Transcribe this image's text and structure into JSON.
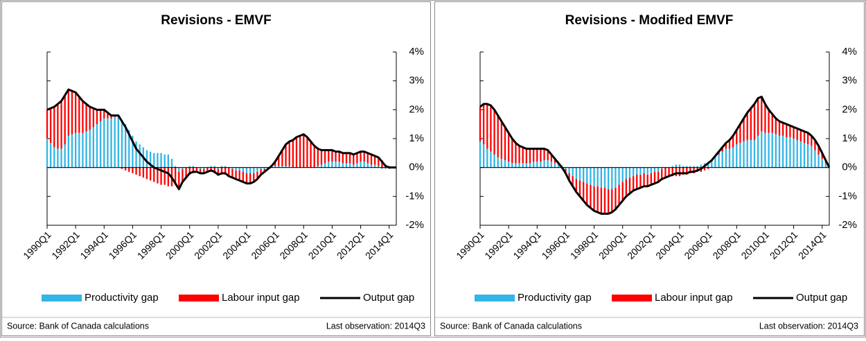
{
  "chart_data": [
    {
      "type": "bar",
      "stacked": true,
      "title": "Revisions - EMVF",
      "categories": [
        "1990Q1",
        null,
        null,
        null,
        null,
        null,
        null,
        null,
        "1992Q1",
        null,
        null,
        null,
        null,
        null,
        null,
        null,
        "1994Q1",
        null,
        null,
        null,
        null,
        null,
        null,
        null,
        "1996Q1",
        null,
        null,
        null,
        null,
        null,
        null,
        null,
        "1998Q1",
        null,
        null,
        null,
        null,
        null,
        null,
        null,
        "2000Q1",
        null,
        null,
        null,
        null,
        null,
        null,
        null,
        "2002Q1",
        null,
        null,
        null,
        null,
        null,
        null,
        null,
        "2004Q1",
        null,
        null,
        null,
        null,
        null,
        null,
        null,
        "2006Q1",
        null,
        null,
        null,
        null,
        null,
        null,
        null,
        "2008Q1",
        null,
        null,
        null,
        null,
        null,
        null,
        null,
        "2010Q1",
        null,
        null,
        null,
        null,
        null,
        null,
        null,
        "2012Q1",
        null,
        null,
        null,
        null,
        null,
        null,
        null,
        "2014Q1",
        null,
        null
      ],
      "series": [
        {
          "name": "Productivity gap",
          "type": "bar",
          "color": "#33b5e5",
          "values": [
            1.0,
            0.85,
            0.7,
            0.65,
            0.65,
            0.8,
            1.1,
            1.15,
            1.2,
            1.2,
            1.2,
            1.25,
            1.3,
            1.4,
            1.5,
            1.6,
            1.7,
            1.7,
            1.7,
            1.75,
            1.8,
            1.65,
            1.5,
            1.3,
            1.1,
            0.9,
            0.8,
            0.7,
            0.6,
            0.55,
            0.5,
            0.5,
            0.5,
            0.45,
            0.45,
            0.3,
            0.05,
            -0.15,
            -0.05,
            0.0,
            0.05,
            0.05,
            0.0,
            -0.05,
            -0.05,
            0.0,
            0.05,
            0.05,
            -0.05,
            0.05,
            0.05,
            0.0,
            -0.05,
            -0.1,
            -0.1,
            -0.15,
            -0.2,
            -0.2,
            -0.2,
            -0.15,
            -0.05,
            -0.05,
            0.0,
            0.0,
            0.05,
            0.05,
            0.05,
            0.05,
            0.05,
            0.0,
            0.0,
            0.0,
            0.0,
            0.0,
            0.0,
            0.0,
            0.05,
            0.1,
            0.15,
            0.2,
            0.2,
            0.2,
            0.2,
            0.15,
            0.15,
            0.15,
            0.1,
            0.15,
            0.2,
            0.2,
            0.15,
            0.1,
            0.1,
            0.05,
            -0.05,
            -0.05,
            -0.05,
            0.0,
            0.0
          ]
        },
        {
          "name": "Labour input gap",
          "type": "bar",
          "color": "#ff0000",
          "values": [
            1.0,
            1.2,
            1.4,
            1.55,
            1.65,
            1.7,
            1.6,
            1.5,
            1.4,
            1.25,
            1.1,
            0.95,
            0.8,
            0.65,
            0.5,
            0.4,
            0.3,
            0.2,
            0.1,
            0.05,
            0.0,
            -0.05,
            -0.1,
            -0.15,
            -0.2,
            -0.25,
            -0.3,
            -0.35,
            -0.4,
            -0.45,
            -0.5,
            -0.55,
            -0.6,
            -0.6,
            -0.65,
            -0.65,
            -0.6,
            -0.6,
            -0.45,
            -0.35,
            -0.25,
            -0.2,
            -0.15,
            -0.15,
            -0.15,
            -0.15,
            -0.15,
            -0.2,
            -0.2,
            -0.25,
            -0.25,
            -0.3,
            -0.3,
            -0.3,
            -0.35,
            -0.35,
            -0.35,
            -0.35,
            -0.3,
            -0.25,
            -0.2,
            -0.1,
            -0.05,
            0.05,
            0.15,
            0.35,
            0.55,
            0.75,
            0.85,
            0.95,
            1.05,
            1.1,
            1.15,
            1.05,
            0.9,
            0.75,
            0.6,
            0.5,
            0.45,
            0.4,
            0.4,
            0.35,
            0.35,
            0.35,
            0.35,
            0.35,
            0.35,
            0.35,
            0.35,
            0.35,
            0.35,
            0.35,
            0.3,
            0.3,
            0.25,
            0.1,
            0.05,
            0.0,
            0.0
          ]
        },
        {
          "name": "Output gap",
          "type": "line",
          "color": "#000000",
          "values": [
            2.0,
            2.05,
            2.1,
            2.2,
            2.3,
            2.5,
            2.7,
            2.65,
            2.6,
            2.45,
            2.3,
            2.2,
            2.1,
            2.05,
            2.0,
            2.0,
            2.0,
            1.9,
            1.8,
            1.8,
            1.8,
            1.6,
            1.4,
            1.15,
            0.9,
            0.65,
            0.5,
            0.35,
            0.2,
            0.1,
            0.0,
            -0.05,
            -0.1,
            -0.15,
            -0.2,
            -0.35,
            -0.55,
            -0.75,
            -0.5,
            -0.35,
            -0.2,
            -0.15,
            -0.15,
            -0.2,
            -0.2,
            -0.15,
            -0.1,
            -0.15,
            -0.25,
            -0.2,
            -0.2,
            -0.3,
            -0.35,
            -0.4,
            -0.45,
            -0.5,
            -0.55,
            -0.55,
            -0.5,
            -0.4,
            -0.25,
            -0.15,
            -0.05,
            0.05,
            0.2,
            0.4,
            0.6,
            0.8,
            0.9,
            0.95,
            1.05,
            1.1,
            1.15,
            1.05,
            0.9,
            0.75,
            0.65,
            0.6,
            0.6,
            0.6,
            0.6,
            0.55,
            0.55,
            0.5,
            0.5,
            0.5,
            0.45,
            0.5,
            0.55,
            0.55,
            0.5,
            0.45,
            0.4,
            0.35,
            0.2,
            0.05,
            0.0,
            0.0,
            0.0
          ]
        }
      ],
      "ylim": [
        -2,
        4
      ],
      "yticks": [
        {
          "value": -2,
          "label": "-2%"
        },
        {
          "value": -1,
          "label": "-1%"
        },
        {
          "value": 0,
          "label": "0%"
        },
        {
          "value": 1,
          "label": "1%"
        },
        {
          "value": 2,
          "label": "2%"
        },
        {
          "value": 3,
          "label": "3%"
        },
        {
          "value": 4,
          "label": "4%"
        }
      ],
      "legend": "bottom",
      "source": "Source: Bank of Canada calculations",
      "note": "Last observation: 2014Q3"
    },
    {
      "type": "bar",
      "stacked": true,
      "title": "Revisions - Modified EMVF",
      "categories": [
        "1990Q1",
        null,
        null,
        null,
        null,
        null,
        null,
        null,
        "1992Q1",
        null,
        null,
        null,
        null,
        null,
        null,
        null,
        "1994Q1",
        null,
        null,
        null,
        null,
        null,
        null,
        null,
        "1996Q1",
        null,
        null,
        null,
        null,
        null,
        null,
        null,
        "1998Q1",
        null,
        null,
        null,
        null,
        null,
        null,
        null,
        "2000Q1",
        null,
        null,
        null,
        null,
        null,
        null,
        null,
        "2002Q1",
        null,
        null,
        null,
        null,
        null,
        null,
        null,
        "2004Q1",
        null,
        null,
        null,
        null,
        null,
        null,
        null,
        "2006Q1",
        null,
        null,
        null,
        null,
        null,
        null,
        null,
        "2008Q1",
        null,
        null,
        null,
        null,
        null,
        null,
        null,
        "2010Q1",
        null,
        null,
        null,
        null,
        null,
        null,
        null,
        "2012Q1",
        null,
        null,
        null,
        null,
        null,
        null,
        null,
        "2014Q1",
        null,
        null
      ],
      "series": [
        {
          "name": "Productivity gap",
          "type": "bar",
          "color": "#33b5e5",
          "values": [
            0.9,
            0.8,
            0.65,
            0.55,
            0.45,
            0.35,
            0.3,
            0.25,
            0.2,
            0.15,
            0.15,
            0.15,
            0.15,
            0.15,
            0.15,
            0.2,
            0.2,
            0.2,
            0.25,
            0.25,
            0.2,
            0.15,
            0.1,
            0.05,
            -0.05,
            -0.2,
            -0.3,
            -0.4,
            -0.45,
            -0.5,
            -0.55,
            -0.6,
            -0.65,
            -0.65,
            -0.7,
            -0.7,
            -0.75,
            -0.75,
            -0.7,
            -0.6,
            -0.5,
            -0.4,
            -0.35,
            -0.3,
            -0.25,
            -0.25,
            -0.2,
            -0.25,
            -0.2,
            -0.15,
            -0.15,
            -0.05,
            0.0,
            0.0,
            0.05,
            0.1,
            0.1,
            0.05,
            0.05,
            0.05,
            0.05,
            0.05,
            0.1,
            0.15,
            0.2,
            0.25,
            0.35,
            0.45,
            0.55,
            0.65,
            0.65,
            0.7,
            0.8,
            0.85,
            0.9,
            0.95,
            0.95,
            0.95,
            1.1,
            1.25,
            1.2,
            1.2,
            1.2,
            1.15,
            1.1,
            1.1,
            1.05,
            1.05,
            1.0,
            0.95,
            0.9,
            0.85,
            0.8,
            0.75,
            0.6,
            0.45,
            0.3,
            0.15,
            0.0
          ]
        },
        {
          "name": "Labour input gap",
          "type": "bar",
          "color": "#ff0000",
          "values": [
            1.2,
            1.4,
            1.55,
            1.6,
            1.55,
            1.45,
            1.3,
            1.15,
            1.0,
            0.85,
            0.7,
            0.6,
            0.55,
            0.5,
            0.5,
            0.45,
            0.45,
            0.45,
            0.4,
            0.35,
            0.25,
            0.15,
            0.05,
            -0.05,
            -0.15,
            -0.25,
            -0.35,
            -0.45,
            -0.55,
            -0.65,
            -0.75,
            -0.8,
            -0.85,
            -0.9,
            -0.9,
            -0.9,
            -0.85,
            -0.8,
            -0.75,
            -0.7,
            -0.65,
            -0.6,
            -0.55,
            -0.5,
            -0.5,
            -0.45,
            -0.45,
            -0.4,
            -0.4,
            -0.4,
            -0.35,
            -0.35,
            -0.35,
            -0.3,
            -0.3,
            -0.3,
            -0.3,
            -0.25,
            -0.25,
            -0.2,
            -0.2,
            -0.15,
            -0.15,
            -0.1,
            -0.05,
            0.0,
            0.05,
            0.1,
            0.15,
            0.2,
            0.3,
            0.4,
            0.5,
            0.65,
            0.8,
            0.95,
            1.1,
            1.25,
            1.3,
            1.2,
            1.0,
            0.8,
            0.65,
            0.55,
            0.5,
            0.45,
            0.45,
            0.4,
            0.4,
            0.4,
            0.4,
            0.4,
            0.4,
            0.35,
            0.35,
            0.3,
            0.2,
            0.1,
            0.0
          ]
        },
        {
          "name": "Output gap",
          "type": "line",
          "color": "#000000",
          "values": [
            2.1,
            2.2,
            2.2,
            2.15,
            2.0,
            1.8,
            1.6,
            1.4,
            1.2,
            1.0,
            0.85,
            0.75,
            0.7,
            0.65,
            0.65,
            0.65,
            0.65,
            0.65,
            0.65,
            0.6,
            0.45,
            0.3,
            0.15,
            0.0,
            -0.2,
            -0.45,
            -0.65,
            -0.85,
            -1.0,
            -1.15,
            -1.3,
            -1.4,
            -1.5,
            -1.55,
            -1.6,
            -1.6,
            -1.6,
            -1.55,
            -1.45,
            -1.3,
            -1.15,
            -1.0,
            -0.9,
            -0.8,
            -0.75,
            -0.7,
            -0.65,
            -0.65,
            -0.6,
            -0.55,
            -0.5,
            -0.4,
            -0.35,
            -0.3,
            -0.25,
            -0.2,
            -0.2,
            -0.2,
            -0.2,
            -0.15,
            -0.15,
            -0.1,
            -0.05,
            0.05,
            0.15,
            0.25,
            0.4,
            0.55,
            0.7,
            0.85,
            0.95,
            1.1,
            1.3,
            1.5,
            1.7,
            1.9,
            2.05,
            2.2,
            2.4,
            2.45,
            2.2,
            2.0,
            1.85,
            1.7,
            1.6,
            1.55,
            1.5,
            1.45,
            1.4,
            1.35,
            1.3,
            1.25,
            1.2,
            1.1,
            0.95,
            0.75,
            0.5,
            0.25,
            0.0
          ]
        }
      ],
      "ylim": [
        -2,
        4
      ],
      "yticks": [
        {
          "value": -2,
          "label": "-2%"
        },
        {
          "value": -1,
          "label": "-1%"
        },
        {
          "value": 0,
          "label": "0%"
        },
        {
          "value": 1,
          "label": "1%"
        },
        {
          "value": 2,
          "label": "2%"
        },
        {
          "value": 3,
          "label": "3%"
        },
        {
          "value": 4,
          "label": "4%"
        }
      ],
      "legend": "bottom",
      "source": "Source: Bank of Canada calculations",
      "note": "Last observation: 2014Q3"
    }
  ]
}
